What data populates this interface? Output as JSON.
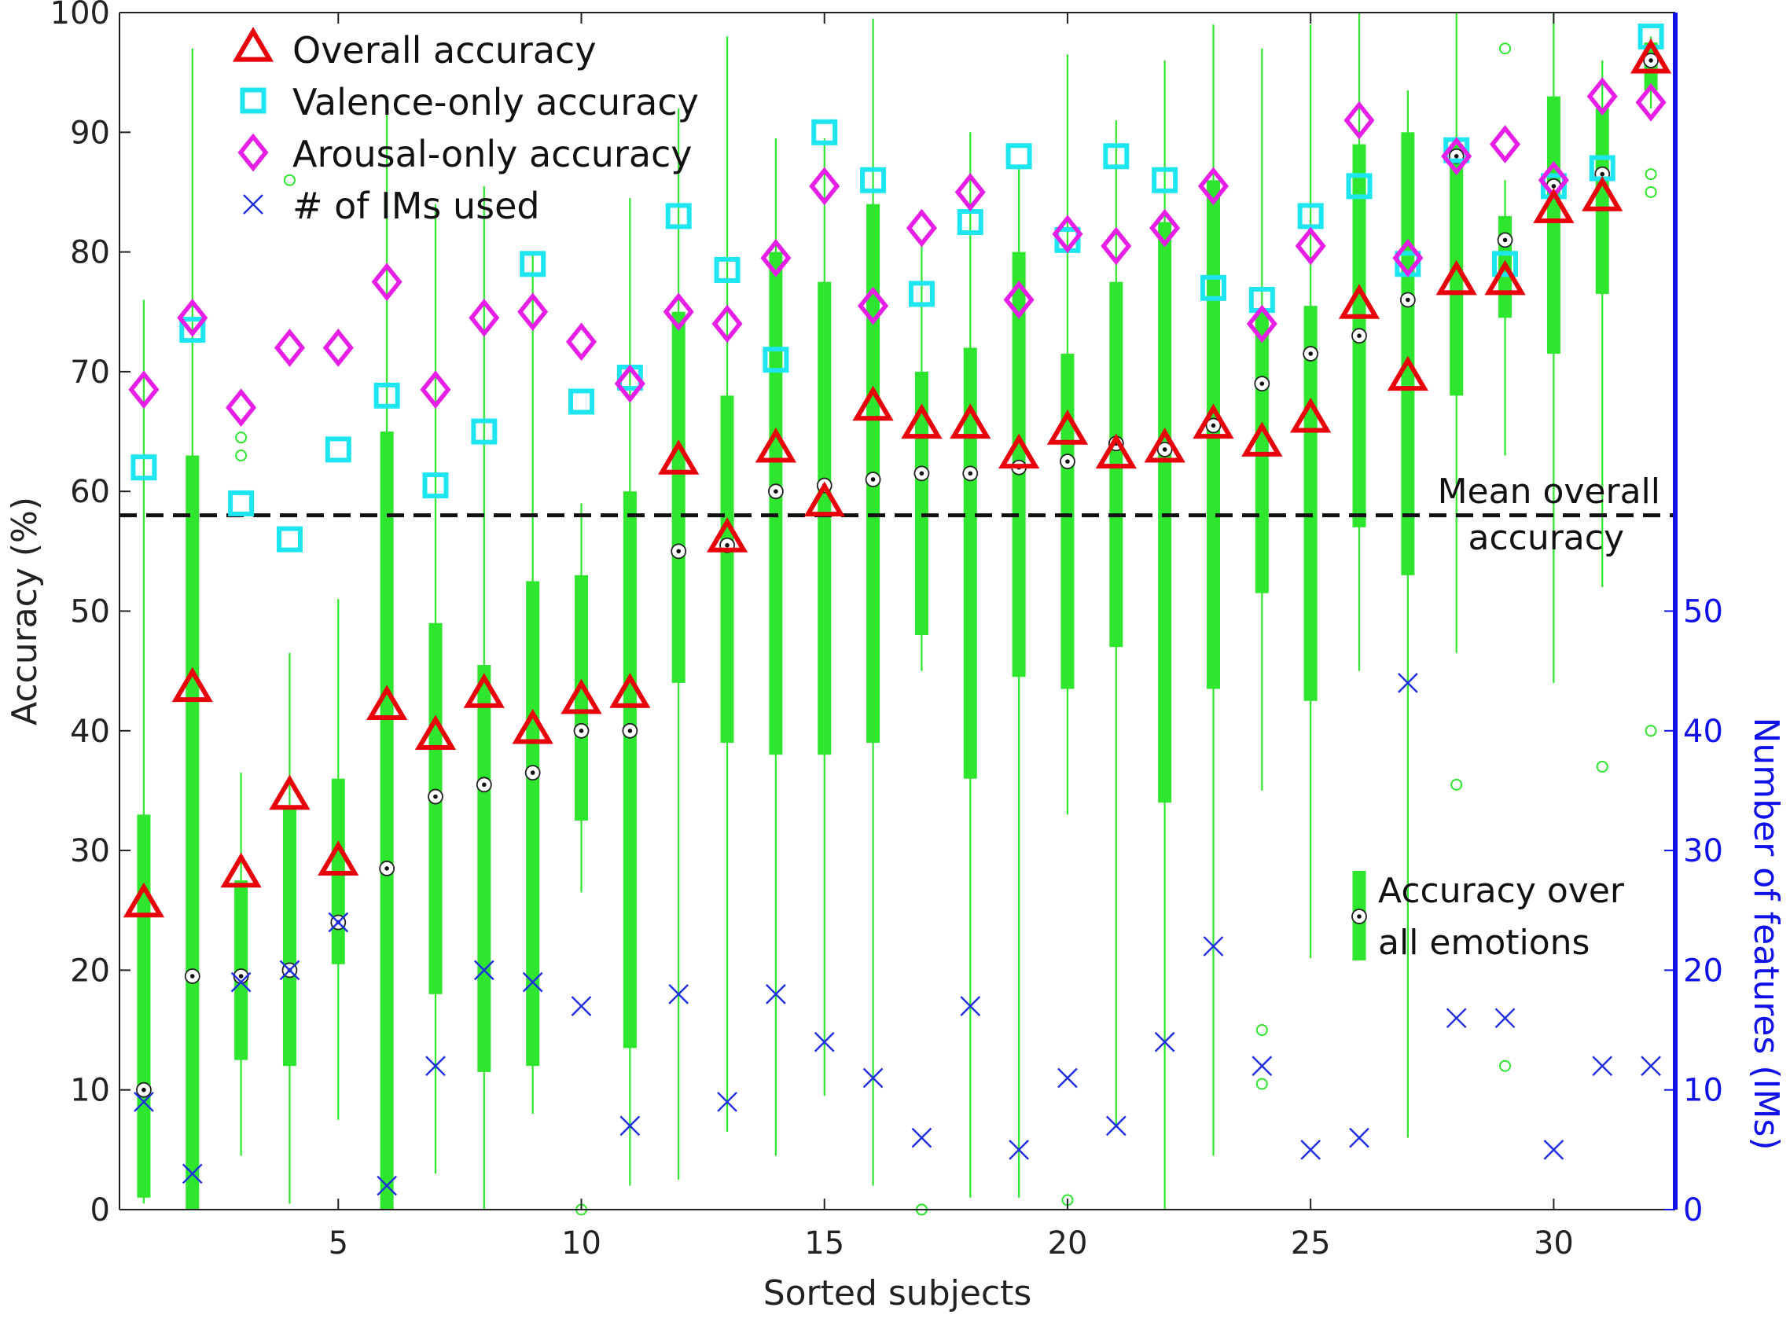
{
  "chart_data": {
    "type": "box",
    "xlabel": "Sorted subjects",
    "ylabel": "Accuracy (%)",
    "ylabel_right": "Number of features (IMs)",
    "xlim": [
      0.5,
      32.5
    ],
    "ylim": [
      0,
      100
    ],
    "ylim_right": [
      0,
      100
    ],
    "x_ticks": [
      5,
      10,
      15,
      20,
      25,
      30
    ],
    "y_ticks": [
      0,
      10,
      20,
      30,
      40,
      50,
      60,
      70,
      80,
      90,
      100
    ],
    "y_ticks_right": [
      0,
      10,
      20,
      30,
      40,
      50
    ],
    "mean_overall_accuracy": 58,
    "mean_line_label": "Mean overall accuracy",
    "mean_line_label_lines": [
      "Mean overall",
      "accuracy"
    ],
    "legend": {
      "overall": "Overall accuracy",
      "valence": "Valence-only accuracy",
      "arousal": "Arousal-only accuracy",
      "ims": "# of IMs used",
      "box": "Accuracy over all emotions",
      "box_lines": [
        "Accuracy over",
        "all emotions"
      ]
    },
    "colors": {
      "overall": "#e8000b",
      "valence": "#1ee6f0",
      "arousal": "#e61ee6",
      "ims": "#1f2fe0",
      "box": "#2ee62e",
      "right_axis": "#1010e8",
      "mean_line": "#111111"
    },
    "subjects": [
      1,
      2,
      3,
      4,
      5,
      6,
      7,
      8,
      9,
      10,
      11,
      12,
      13,
      14,
      15,
      16,
      17,
      18,
      19,
      20,
      21,
      22,
      23,
      24,
      25,
      26,
      27,
      28,
      29,
      30,
      31,
      32
    ],
    "overall_accuracy": [
      25.5,
      43.5,
      28,
      34.5,
      29,
      42,
      39.5,
      43,
      40,
      42.5,
      43,
      62.5,
      56,
      63.5,
      59,
      67,
      65.5,
      65.5,
      63,
      65,
      63,
      63.5,
      65.5,
      64,
      66,
      75.5,
      69.5,
      77.5,
      77.5,
      83.5,
      84.5,
      96
    ],
    "valence_accuracy": [
      62,
      73.5,
      59,
      56,
      63.5,
      68,
      60.5,
      65,
      79,
      67.5,
      69.5,
      83,
      78.5,
      71,
      90,
      86,
      76.5,
      82.5,
      88,
      81,
      88,
      86,
      77,
      76,
      83,
      85.5,
      79,
      88.5,
      79,
      85.5,
      87,
      98
    ],
    "arousal_accuracy": [
      68.5,
      74.5,
      67,
      72,
      72,
      77.5,
      68.5,
      74.5,
      75,
      72.5,
      69,
      75,
      74,
      79.5,
      85.5,
      75.5,
      82,
      85,
      76,
      81.5,
      80.5,
      82,
      85.5,
      74,
      80.5,
      91,
      79.5,
      88,
      89,
      86,
      93,
      92.5
    ],
    "num_ims": [
      9,
      3,
      19,
      20,
      24,
      2,
      12,
      20,
      19,
      17,
      7,
      18,
      9,
      18,
      14,
      11,
      6,
      17,
      5,
      11,
      7,
      14,
      22,
      12,
      5,
      6,
      44,
      16,
      16,
      5,
      12,
      12
    ],
    "box_stats": [
      {
        "whisker_low": 0.5,
        "q1": 1,
        "median": 10,
        "q3": 33,
        "whisker_high": 76
      },
      {
        "whisker_low": 0,
        "q1": 0,
        "median": 19.5,
        "q3": 63,
        "whisker_high": 97
      },
      {
        "whisker_low": 4.5,
        "q1": 12.5,
        "median": 19.5,
        "q3": 27.5,
        "whisker_high": 36.5
      },
      {
        "whisker_low": 0.5,
        "q1": 12,
        "median": 20,
        "q3": 33.5,
        "whisker_high": 46.5
      },
      {
        "whisker_low": 7.5,
        "q1": 20.5,
        "median": 24,
        "q3": 36,
        "whisker_high": 51
      },
      {
        "whisker_low": 0,
        "q1": 0,
        "median": 28.5,
        "q3": 65,
        "whisker_high": 93
      },
      {
        "whisker_low": 3,
        "q1": 18,
        "median": 34.5,
        "q3": 49,
        "whisker_high": 84
      },
      {
        "whisker_low": 0,
        "q1": 11.5,
        "median": 35.5,
        "q3": 45.5,
        "whisker_high": 85.5
      },
      {
        "whisker_low": 8,
        "q1": 12,
        "median": 36.5,
        "q3": 52.5,
        "whisker_high": 80
      },
      {
        "whisker_low": 26.5,
        "q1": 32.5,
        "median": 40,
        "q3": 53,
        "whisker_high": 59
      },
      {
        "whisker_low": 2,
        "q1": 13.5,
        "median": 40,
        "q3": 60,
        "whisker_high": 84.5
      },
      {
        "whisker_low": 2.5,
        "q1": 44,
        "median": 55,
        "q3": 75,
        "whisker_high": 92
      },
      {
        "whisker_low": 6.5,
        "q1": 39,
        "median": 55.5,
        "q3": 68,
        "whisker_high": 98
      },
      {
        "whisker_low": 4.5,
        "q1": 38,
        "median": 60,
        "q3": 80,
        "whisker_high": 89.5
      },
      {
        "whisker_low": 9.5,
        "q1": 38,
        "median": 60.5,
        "q3": 77.5,
        "whisker_high": 89.5
      },
      {
        "whisker_low": 2,
        "q1": 39,
        "median": 61,
        "q3": 84,
        "whisker_high": 99.5
      },
      {
        "whisker_low": 45,
        "q1": 48,
        "median": 61.5,
        "q3": 70,
        "whisker_high": 81
      },
      {
        "whisker_low": 1,
        "q1": 36,
        "median": 61.5,
        "q3": 72,
        "whisker_high": 90
      },
      {
        "whisker_low": 1,
        "q1": 44.5,
        "median": 62,
        "q3": 80,
        "whisker_high": 87
      },
      {
        "whisker_low": 33,
        "q1": 43.5,
        "median": 62.5,
        "q3": 71.5,
        "whisker_high": 96.5
      },
      {
        "whisker_low": 7,
        "q1": 47,
        "median": 64,
        "q3": 77.5,
        "whisker_high": 91
      },
      {
        "whisker_low": 0,
        "q1": 34,
        "median": 63.5,
        "q3": 82.5,
        "whisker_high": 96
      },
      {
        "whisker_low": 4.5,
        "q1": 43.5,
        "median": 65.5,
        "q3": 86,
        "whisker_high": 99
      },
      {
        "whisker_low": 35,
        "q1": 51.5,
        "median": 69,
        "q3": 75,
        "whisker_high": 97
      },
      {
        "whisker_low": 21,
        "q1": 42.5,
        "median": 71.5,
        "q3": 75.5,
        "whisker_high": 99
      },
      {
        "whisker_low": 45,
        "q1": 57,
        "median": 73,
        "q3": 89,
        "whisker_high": 100
      },
      {
        "whisker_low": 6,
        "q1": 53,
        "median": 76,
        "q3": 90,
        "whisker_high": 93.5
      },
      {
        "whisker_low": 46.5,
        "q1": 68,
        "median": 88,
        "q3": 89,
        "whisker_high": 100
      },
      {
        "whisker_low": 63,
        "q1": 74.5,
        "median": 81,
        "q3": 83,
        "whisker_high": 86
      },
      {
        "whisker_low": 44,
        "q1": 71.5,
        "median": 85.5,
        "q3": 93,
        "whisker_high": 100
      },
      {
        "whisker_low": 52,
        "q1": 76.5,
        "median": 86.5,
        "q3": 92,
        "whisker_high": 96
      },
      {
        "whisker_low": 92,
        "q1": 93.5,
        "median": 96,
        "q3": 97.5,
        "whisker_high": 98
      }
    ],
    "outliers": [
      {
        "subject": 3,
        "value": 63
      },
      {
        "subject": 3,
        "value": 64.5
      },
      {
        "subject": 4,
        "value": 86
      },
      {
        "subject": 10,
        "value": 0
      },
      {
        "subject": 17,
        "value": 0
      },
      {
        "subject": 17,
        "value": 0
      },
      {
        "subject": 20,
        "value": 0.8
      },
      {
        "subject": 24,
        "value": 15
      },
      {
        "subject": 24,
        "value": 10.5
      },
      {
        "subject": 28,
        "value": 35.5
      },
      {
        "subject": 29,
        "value": 97
      },
      {
        "subject": 29,
        "value": 12
      },
      {
        "subject": 31,
        "value": 37
      },
      {
        "subject": 32,
        "value": 40
      },
      {
        "subject": 32,
        "value": 86.5
      },
      {
        "subject": 32,
        "value": 85
      }
    ]
  }
}
